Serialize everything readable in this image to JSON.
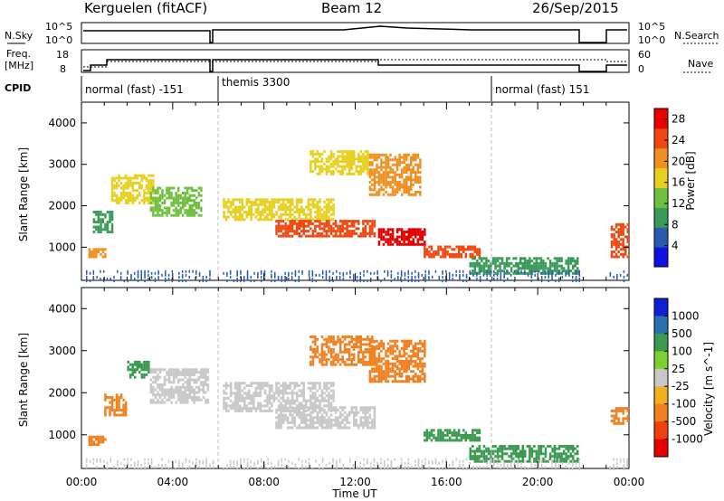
{
  "header": {
    "station": "Kerguelen (fitACF)",
    "beam": "Beam 12",
    "date": "26/Sep/2015"
  },
  "aux_labels": {
    "nsky": "N.Sky",
    "nsearch": "N.Search",
    "freq_line1": "Freq.",
    "freq_line2": "[MHz]",
    "nave": "Nave",
    "cpid": "CPID",
    "nsky_ticks": [
      "10^5",
      "10^0"
    ],
    "nsky_right_ticks": [
      "10^5",
      "10^0"
    ],
    "freq_ticks": [
      "18",
      "8"
    ],
    "nave_ticks": [
      "60",
      "0"
    ]
  },
  "cpid_segments": [
    {
      "label": "normal (fast) -151",
      "start": 0.0,
      "end": 6.0
    },
    {
      "label": "themis 3300",
      "start": 6.0,
      "end": 18.0
    },
    {
      "label": "normal (fast) 151",
      "start": 18.0,
      "end": 24.0
    }
  ],
  "colors": {
    "power": [
      "#1010e0",
      "#2a5ab0",
      "#3a9a58",
      "#70c040",
      "#e8d020",
      "#f09020",
      "#f04810",
      "#e80000"
    ],
    "velocity": [
      "#1020d0",
      "#2a70b0",
      "#3a9a50",
      "#7cd030",
      "#c8c8c8",
      "#f0b020",
      "#f08020",
      "#f04010",
      "#e80000"
    ]
  },
  "chart_data": [
    {
      "type": "heatmap",
      "panel": "power",
      "xlabel": "",
      "ylabel": "Slant Range [km]",
      "xlim": [
        0,
        24
      ],
      "ylim": [
        200,
        4500
      ],
      "yticks": [
        "1000",
        "2000",
        "3000",
        "4000"
      ],
      "colorbar": {
        "label": "Power [dB]",
        "ticks": [
          "4",
          "8",
          "12",
          "16",
          "20",
          "24",
          "28"
        ],
        "range": [
          0,
          30
        ]
      },
      "regions": [
        {
          "t0": 0.3,
          "t1": 1.0,
          "r0": 800,
          "r1": 1000,
          "v": 20
        },
        {
          "t0": 0.5,
          "t1": 1.4,
          "r0": 1400,
          "r1": 1900,
          "v": 10
        },
        {
          "t0": 1.3,
          "t1": 3.2,
          "r0": 2100,
          "r1": 2800,
          "v": 17
        },
        {
          "t0": 3.0,
          "t1": 5.2,
          "r0": 1800,
          "r1": 2500,
          "v": 12
        },
        {
          "t0": 6.2,
          "t1": 11.0,
          "r0": 1700,
          "r1": 2200,
          "v": 15
        },
        {
          "t0": 8.5,
          "t1": 12.8,
          "r0": 1300,
          "r1": 1700,
          "v": 26
        },
        {
          "t0": 10.0,
          "t1": 12.5,
          "r0": 2800,
          "r1": 3400,
          "v": 16
        },
        {
          "t0": 12.6,
          "t1": 14.8,
          "r0": 2300,
          "r1": 3300,
          "v": 19
        },
        {
          "t0": 13.0,
          "t1": 15.0,
          "r0": 1100,
          "r1": 1500,
          "v": 27
        },
        {
          "t0": 15.0,
          "t1": 17.5,
          "r0": 800,
          "r1": 1100,
          "v": 25
        },
        {
          "t0": 17.0,
          "t1": 21.8,
          "r0": 400,
          "r1": 800,
          "v": 11
        },
        {
          "t0": 23.2,
          "t1": 24.0,
          "r0": 800,
          "r1": 1600,
          "v": 23
        }
      ]
    },
    {
      "type": "heatmap",
      "panel": "velocity",
      "xlabel": "Time UT",
      "ylabel": "Slant Range [km]",
      "xlim": [
        0,
        24
      ],
      "ylim": [
        200,
        4500
      ],
      "xticks": [
        "00:00",
        "04:00",
        "08:00",
        "12:00",
        "16:00",
        "20:00",
        "00:00"
      ],
      "yticks": [
        "1000",
        "2000",
        "3000",
        "4000"
      ],
      "colorbar": {
        "label": "Velocity [m s^-1]",
        "ticks": [
          "1000",
          "500",
          "100",
          "25",
          "-25",
          "-100",
          "-500",
          "-1000"
        ]
      },
      "regions": [
        {
          "t0": 0.3,
          "t1": 1.0,
          "r0": 800,
          "r1": 1000,
          "v": "-300"
        },
        {
          "t0": 1.0,
          "t1": 2.0,
          "r0": 1500,
          "r1": 2000,
          "v": "-200"
        },
        {
          "t0": 2.0,
          "t1": 3.0,
          "r0": 2400,
          "r1": 2800,
          "v": "150"
        },
        {
          "t0": 3.0,
          "t1": 5.5,
          "r0": 1800,
          "r1": 2600,
          "v": "0"
        },
        {
          "t0": 6.2,
          "t1": 11.0,
          "r0": 1600,
          "r1": 2300,
          "v": "0"
        },
        {
          "t0": 8.5,
          "t1": 12.8,
          "r0": 1200,
          "r1": 1700,
          "v": "0"
        },
        {
          "t0": 10.0,
          "t1": 12.8,
          "r0": 2700,
          "r1": 3400,
          "v": "-200"
        },
        {
          "t0": 12.6,
          "t1": 15.0,
          "r0": 2300,
          "r1": 3300,
          "v": "-150"
        },
        {
          "t0": 15.0,
          "t1": 17.5,
          "r0": 900,
          "r1": 1200,
          "v": "150"
        },
        {
          "t0": 17.0,
          "t1": 21.8,
          "r0": 400,
          "r1": 800,
          "v": "150"
        },
        {
          "t0": 23.2,
          "t1": 24.0,
          "r0": 1300,
          "r1": 1700,
          "v": "-300"
        }
      ]
    }
  ]
}
